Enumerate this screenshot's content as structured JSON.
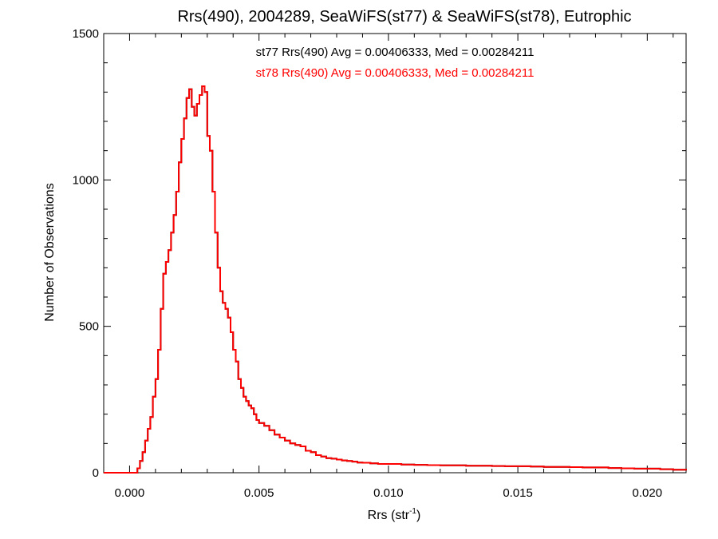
{
  "chart_data": {
    "type": "histogram",
    "title": "Rrs(490), 2004289, SeaWiFS(st77) & SeaWiFS(st78), Eutrophic",
    "xlabel": "Rrs (str",
    "xlabel_sup": "-1",
    "xlabel_end": ")",
    "ylabel": "Number of Observations",
    "xlim": [
      -0.001,
      0.0215
    ],
    "ylim": [
      0,
      1500
    ],
    "x_ticks": [
      "0.000",
      "0.005",
      "0.010",
      "0.015",
      "0.020"
    ],
    "x_tick_values": [
      0.0,
      0.005,
      0.01,
      0.015,
      0.02
    ],
    "y_ticks": [
      "0",
      "500",
      "1000",
      "1500"
    ],
    "y_tick_values": [
      0,
      500,
      1000,
      1500
    ],
    "grid": false,
    "annotations": [
      {
        "text": "st77 Rrs(490) Avg = 0.00406333, Med = 0.00284211",
        "color": "#000000"
      },
      {
        "text": "st78 Rrs(490) Avg = 0.00406333, Med = 0.00284211",
        "color": "#ff0000"
      }
    ],
    "series": [
      {
        "name": "st77",
        "color": "#000000",
        "x": [
          -0.001,
          0.0003,
          0.0004,
          0.0005,
          0.0006,
          0.0007,
          0.0008,
          0.0009,
          0.001,
          0.0011,
          0.0012,
          0.0013,
          0.0014,
          0.0015,
          0.0016,
          0.0017,
          0.0018,
          0.0019,
          0.002,
          0.0021,
          0.0022,
          0.0023,
          0.0024,
          0.0025,
          0.0026,
          0.0027,
          0.0028,
          0.0029,
          0.003,
          0.0031,
          0.0032,
          0.0033,
          0.0034,
          0.0035,
          0.0036,
          0.0037,
          0.0038,
          0.0039,
          0.004,
          0.0041,
          0.0042,
          0.0043,
          0.0044,
          0.0045,
          0.0046,
          0.0047,
          0.0048,
          0.0049,
          0.005,
          0.0052,
          0.0054,
          0.0056,
          0.0058,
          0.006,
          0.0062,
          0.0064,
          0.0066,
          0.0068,
          0.007,
          0.0072,
          0.0074,
          0.0076,
          0.0078,
          0.008,
          0.0082,
          0.0084,
          0.0086,
          0.0088,
          0.009,
          0.0093,
          0.0096,
          0.01,
          0.0105,
          0.011,
          0.0115,
          0.012,
          0.0125,
          0.013,
          0.0135,
          0.014,
          0.0145,
          0.015,
          0.0155,
          0.016,
          0.0165,
          0.017,
          0.0175,
          0.018,
          0.0185,
          0.019,
          0.0195,
          0.02,
          0.0205,
          0.021,
          0.0215
        ],
        "y": [
          0,
          15,
          40,
          70,
          110,
          150,
          190,
          260,
          320,
          420,
          560,
          680,
          720,
          760,
          820,
          880,
          960,
          1060,
          1140,
          1210,
          1280,
          1310,
          1250,
          1220,
          1260,
          1290,
          1320,
          1300,
          1150,
          1100,
          960,
          820,
          700,
          620,
          580,
          560,
          530,
          480,
          420,
          380,
          320,
          290,
          260,
          245,
          230,
          220,
          200,
          180,
          170,
          160,
          145,
          130,
          120,
          110,
          100,
          95,
          90,
          75,
          70,
          60,
          55,
          50,
          48,
          45,
          42,
          40,
          38,
          35,
          34,
          32,
          30,
          30,
          28,
          27,
          26,
          25,
          25,
          24,
          24,
          23,
          22,
          22,
          21,
          20,
          20,
          19,
          18,
          18,
          16,
          15,
          14,
          14,
          12,
          10,
          8
        ]
      },
      {
        "name": "st78",
        "color": "#ff0000",
        "x": [
          -0.001,
          0.0003,
          0.0004,
          0.0005,
          0.0006,
          0.0007,
          0.0008,
          0.0009,
          0.001,
          0.0011,
          0.0012,
          0.0013,
          0.0014,
          0.0015,
          0.0016,
          0.0017,
          0.0018,
          0.0019,
          0.002,
          0.0021,
          0.0022,
          0.0023,
          0.0024,
          0.0025,
          0.0026,
          0.0027,
          0.0028,
          0.0029,
          0.003,
          0.0031,
          0.0032,
          0.0033,
          0.0034,
          0.0035,
          0.0036,
          0.0037,
          0.0038,
          0.0039,
          0.004,
          0.0041,
          0.0042,
          0.0043,
          0.0044,
          0.0045,
          0.0046,
          0.0047,
          0.0048,
          0.0049,
          0.005,
          0.0052,
          0.0054,
          0.0056,
          0.0058,
          0.006,
          0.0062,
          0.0064,
          0.0066,
          0.0068,
          0.007,
          0.0072,
          0.0074,
          0.0076,
          0.0078,
          0.008,
          0.0082,
          0.0084,
          0.0086,
          0.0088,
          0.009,
          0.0093,
          0.0096,
          0.01,
          0.0105,
          0.011,
          0.0115,
          0.012,
          0.0125,
          0.013,
          0.0135,
          0.014,
          0.0145,
          0.015,
          0.0155,
          0.016,
          0.0165,
          0.017,
          0.0175,
          0.018,
          0.0185,
          0.019,
          0.0195,
          0.02,
          0.0205,
          0.021,
          0.0215
        ],
        "y": [
          0,
          15,
          40,
          70,
          110,
          150,
          190,
          260,
          320,
          420,
          560,
          680,
          720,
          760,
          820,
          880,
          960,
          1060,
          1140,
          1210,
          1280,
          1310,
          1250,
          1220,
          1260,
          1290,
          1320,
          1300,
          1150,
          1100,
          960,
          820,
          700,
          620,
          580,
          560,
          530,
          480,
          420,
          380,
          320,
          290,
          260,
          245,
          230,
          220,
          200,
          180,
          170,
          160,
          145,
          130,
          120,
          110,
          100,
          95,
          90,
          75,
          70,
          60,
          55,
          50,
          48,
          45,
          42,
          40,
          38,
          35,
          34,
          32,
          30,
          30,
          28,
          27,
          26,
          25,
          25,
          24,
          24,
          23,
          22,
          22,
          21,
          20,
          20,
          19,
          18,
          18,
          16,
          15,
          14,
          14,
          12,
          10,
          8
        ]
      }
    ]
  }
}
